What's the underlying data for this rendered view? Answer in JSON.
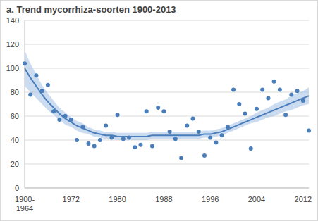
{
  "chart_data": {
    "type": "scatter",
    "title": "a. Trend mycorrhiza-soorten 1900-2013",
    "categories": [
      "1900-1964",
      null,
      null,
      null,
      null,
      null,
      null,
      null,
      "1972",
      null,
      null,
      null,
      null,
      null,
      null,
      null,
      "1980",
      null,
      null,
      null,
      null,
      null,
      null,
      null,
      "1988",
      null,
      null,
      null,
      null,
      null,
      null,
      null,
      "1996",
      null,
      null,
      null,
      null,
      null,
      null,
      null,
      "2004",
      null,
      null,
      null,
      null,
      null,
      null,
      null,
      "2012",
      null
    ],
    "series": [
      {
        "type": "scatter",
        "marker": "circle",
        "color": "#4a7ebb",
        "values": [
          104,
          78,
          94,
          81,
          86,
          64,
          57,
          60,
          57,
          40,
          51,
          37,
          35,
          40,
          52,
          42,
          61,
          41,
          42,
          34,
          36,
          64,
          35,
          67,
          64,
          47,
          41,
          25,
          52,
          58,
          47,
          27,
          42,
          38,
          44,
          51,
          82,
          70,
          62,
          33,
          66,
          82,
          75,
          89,
          82,
          61,
          78,
          81,
          73,
          48
        ]
      },
      {
        "type": "line",
        "line_style": "solid",
        "color": "#4a7ebb",
        "values": [
          100,
          92,
          85,
          78,
          72,
          67,
          62,
          58,
          55,
          52,
          50,
          48,
          46,
          45,
          44,
          44,
          43,
          43,
          43,
          43,
          43,
          43,
          44,
          44,
          44,
          44,
          44,
          44,
          44,
          44,
          44,
          45,
          45,
          46,
          47,
          49,
          51,
          53,
          55,
          57,
          59,
          61,
          63,
          65,
          67,
          69,
          71,
          73,
          75,
          77
        ]
      },
      {
        "type": "band",
        "color": "#a9c4e8",
        "lower": [
          85,
          80,
          75,
          70,
          65,
          61,
          57,
          53,
          51,
          48,
          46,
          45,
          43,
          42,
          41,
          41,
          40,
          40,
          40,
          40,
          40,
          40,
          41,
          41,
          41,
          41,
          41,
          41,
          41,
          41,
          41,
          42,
          42,
          43,
          44,
          46,
          48,
          50,
          52,
          54,
          55,
          57,
          59,
          60,
          62,
          64,
          65,
          67,
          69,
          70
        ],
        "upper": [
          115,
          104,
          95,
          86,
          79,
          73,
          67,
          63,
          59,
          56,
          54,
          51,
          49,
          48,
          47,
          47,
          46,
          46,
          46,
          46,
          46,
          46,
          47,
          47,
          47,
          47,
          47,
          47,
          47,
          47,
          47,
          48,
          48,
          49,
          50,
          52,
          54,
          56,
          58,
          60,
          63,
          65,
          67,
          70,
          72,
          74,
          77,
          79,
          81,
          84
        ]
      }
    ],
    "ylim": [
      0,
      140
    ],
    "yticks": [
      0,
      20,
      40,
      60,
      80,
      100,
      120,
      140
    ],
    "grid": true
  }
}
